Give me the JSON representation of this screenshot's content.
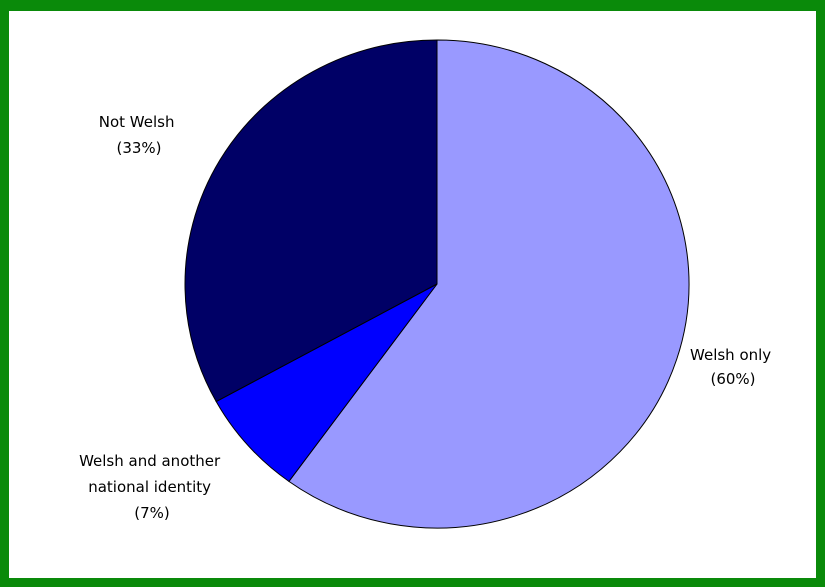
{
  "chart_data": {
    "type": "pie",
    "title": "",
    "start_angle_deg": 0,
    "direction": "clockwise",
    "slices": [
      {
        "name": "Welsh only",
        "label_lines": [
          "Welsh only",
          "(60%)"
        ],
        "value": 60,
        "color": "#9999ff"
      },
      {
        "name": "Welsh and another national identity",
        "label_lines": [
          "Welsh and another",
          "national identity",
          "(7%)"
        ],
        "value": 7,
        "color": "#0000ff"
      },
      {
        "name": "Not Welsh",
        "label_lines": [
          "Not Welsh",
          "(33%)"
        ],
        "value": 33,
        "color": "#000066"
      }
    ]
  },
  "colors": {
    "frame": "#0a8a0a",
    "outline": "#000000"
  }
}
